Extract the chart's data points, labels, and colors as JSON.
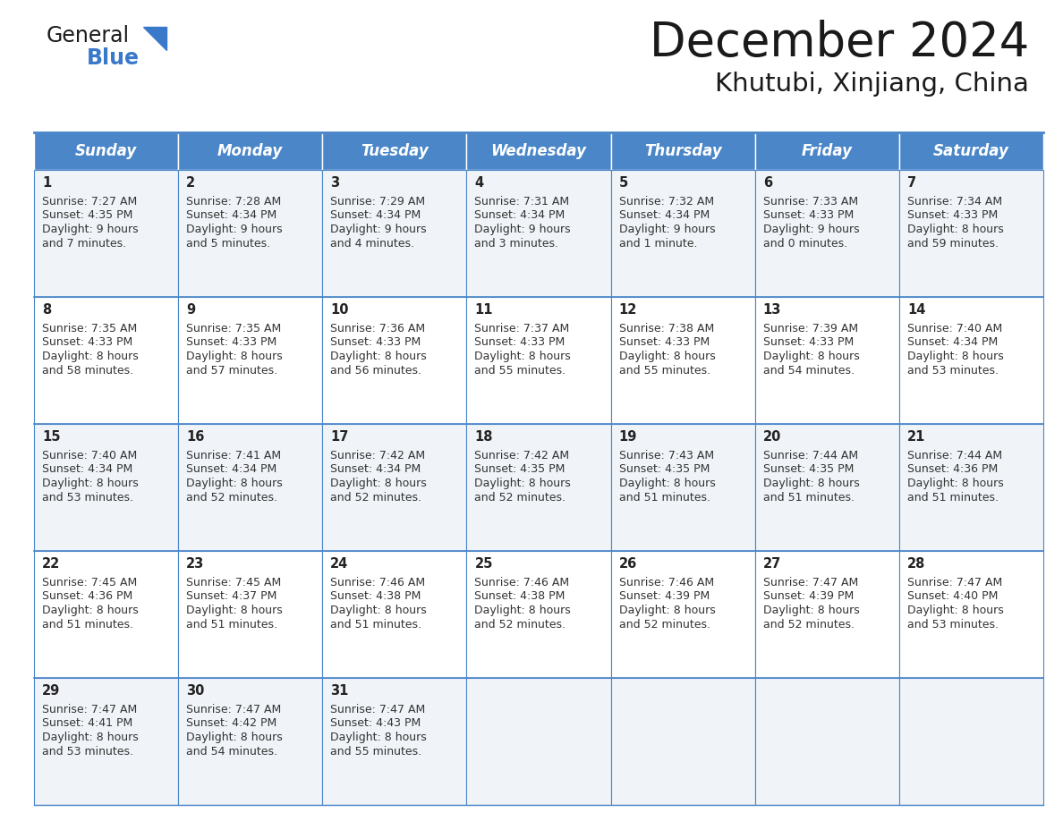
{
  "title": "December 2024",
  "subtitle": "Khutubi, Xinjiang, China",
  "header_color": "#4a86c8",
  "header_text_color": "#FFFFFF",
  "cell_border_color": "#4a86c8",
  "row_colors": [
    "#f0f4f8",
    "#ffffff"
  ],
  "day_number_color": "#222222",
  "cell_text_color": "#333333",
  "background_color": "#FFFFFF",
  "days_of_week": [
    "Sunday",
    "Monday",
    "Tuesday",
    "Wednesday",
    "Thursday",
    "Friday",
    "Saturday"
  ],
  "calendar_data": [
    [
      {
        "day": 1,
        "sunrise": "7:27 AM",
        "sunset": "4:35 PM",
        "daylight_h": "9 hours",
        "daylight_m": "and 7 minutes."
      },
      {
        "day": 2,
        "sunrise": "7:28 AM",
        "sunset": "4:34 PM",
        "daylight_h": "9 hours",
        "daylight_m": "and 5 minutes."
      },
      {
        "day": 3,
        "sunrise": "7:29 AM",
        "sunset": "4:34 PM",
        "daylight_h": "9 hours",
        "daylight_m": "and 4 minutes."
      },
      {
        "day": 4,
        "sunrise": "7:31 AM",
        "sunset": "4:34 PM",
        "daylight_h": "9 hours",
        "daylight_m": "and 3 minutes."
      },
      {
        "day": 5,
        "sunrise": "7:32 AM",
        "sunset": "4:34 PM",
        "daylight_h": "9 hours",
        "daylight_m": "and 1 minute."
      },
      {
        "day": 6,
        "sunrise": "7:33 AM",
        "sunset": "4:33 PM",
        "daylight_h": "9 hours",
        "daylight_m": "and 0 minutes."
      },
      {
        "day": 7,
        "sunrise": "7:34 AM",
        "sunset": "4:33 PM",
        "daylight_h": "8 hours",
        "daylight_m": "and 59 minutes."
      }
    ],
    [
      {
        "day": 8,
        "sunrise": "7:35 AM",
        "sunset": "4:33 PM",
        "daylight_h": "8 hours",
        "daylight_m": "and 58 minutes."
      },
      {
        "day": 9,
        "sunrise": "7:35 AM",
        "sunset": "4:33 PM",
        "daylight_h": "8 hours",
        "daylight_m": "and 57 minutes."
      },
      {
        "day": 10,
        "sunrise": "7:36 AM",
        "sunset": "4:33 PM",
        "daylight_h": "8 hours",
        "daylight_m": "and 56 minutes."
      },
      {
        "day": 11,
        "sunrise": "7:37 AM",
        "sunset": "4:33 PM",
        "daylight_h": "8 hours",
        "daylight_m": "and 55 minutes."
      },
      {
        "day": 12,
        "sunrise": "7:38 AM",
        "sunset": "4:33 PM",
        "daylight_h": "8 hours",
        "daylight_m": "and 55 minutes."
      },
      {
        "day": 13,
        "sunrise": "7:39 AM",
        "sunset": "4:33 PM",
        "daylight_h": "8 hours",
        "daylight_m": "and 54 minutes."
      },
      {
        "day": 14,
        "sunrise": "7:40 AM",
        "sunset": "4:34 PM",
        "daylight_h": "8 hours",
        "daylight_m": "and 53 minutes."
      }
    ],
    [
      {
        "day": 15,
        "sunrise": "7:40 AM",
        "sunset": "4:34 PM",
        "daylight_h": "8 hours",
        "daylight_m": "and 53 minutes."
      },
      {
        "day": 16,
        "sunrise": "7:41 AM",
        "sunset": "4:34 PM",
        "daylight_h": "8 hours",
        "daylight_m": "and 52 minutes."
      },
      {
        "day": 17,
        "sunrise": "7:42 AM",
        "sunset": "4:34 PM",
        "daylight_h": "8 hours",
        "daylight_m": "and 52 minutes."
      },
      {
        "day": 18,
        "sunrise": "7:42 AM",
        "sunset": "4:35 PM",
        "daylight_h": "8 hours",
        "daylight_m": "and 52 minutes."
      },
      {
        "day": 19,
        "sunrise": "7:43 AM",
        "sunset": "4:35 PM",
        "daylight_h": "8 hours",
        "daylight_m": "and 51 minutes."
      },
      {
        "day": 20,
        "sunrise": "7:44 AM",
        "sunset": "4:35 PM",
        "daylight_h": "8 hours",
        "daylight_m": "and 51 minutes."
      },
      {
        "day": 21,
        "sunrise": "7:44 AM",
        "sunset": "4:36 PM",
        "daylight_h": "8 hours",
        "daylight_m": "and 51 minutes."
      }
    ],
    [
      {
        "day": 22,
        "sunrise": "7:45 AM",
        "sunset": "4:36 PM",
        "daylight_h": "8 hours",
        "daylight_m": "and 51 minutes."
      },
      {
        "day": 23,
        "sunrise": "7:45 AM",
        "sunset": "4:37 PM",
        "daylight_h": "8 hours",
        "daylight_m": "and 51 minutes."
      },
      {
        "day": 24,
        "sunrise": "7:46 AM",
        "sunset": "4:38 PM",
        "daylight_h": "8 hours",
        "daylight_m": "and 51 minutes."
      },
      {
        "day": 25,
        "sunrise": "7:46 AM",
        "sunset": "4:38 PM",
        "daylight_h": "8 hours",
        "daylight_m": "and 52 minutes."
      },
      {
        "day": 26,
        "sunrise": "7:46 AM",
        "sunset": "4:39 PM",
        "daylight_h": "8 hours",
        "daylight_m": "and 52 minutes."
      },
      {
        "day": 27,
        "sunrise": "7:47 AM",
        "sunset": "4:39 PM",
        "daylight_h": "8 hours",
        "daylight_m": "and 52 minutes."
      },
      {
        "day": 28,
        "sunrise": "7:47 AM",
        "sunset": "4:40 PM",
        "daylight_h": "8 hours",
        "daylight_m": "and 53 minutes."
      }
    ],
    [
      {
        "day": 29,
        "sunrise": "7:47 AM",
        "sunset": "4:41 PM",
        "daylight_h": "8 hours",
        "daylight_m": "and 53 minutes."
      },
      {
        "day": 30,
        "sunrise": "7:47 AM",
        "sunset": "4:42 PM",
        "daylight_h": "8 hours",
        "daylight_m": "and 54 minutes."
      },
      {
        "day": 31,
        "sunrise": "7:47 AM",
        "sunset": "4:43 PM",
        "daylight_h": "8 hours",
        "daylight_m": "and 55 minutes."
      },
      null,
      null,
      null,
      null
    ]
  ],
  "logo_general_color": "#1a1a1a",
  "logo_blue_color": "#3a78c9",
  "title_fontsize": 38,
  "subtitle_fontsize": 21,
  "header_fontsize": 12,
  "day_number_fontsize": 10.5,
  "cell_content_fontsize": 9
}
